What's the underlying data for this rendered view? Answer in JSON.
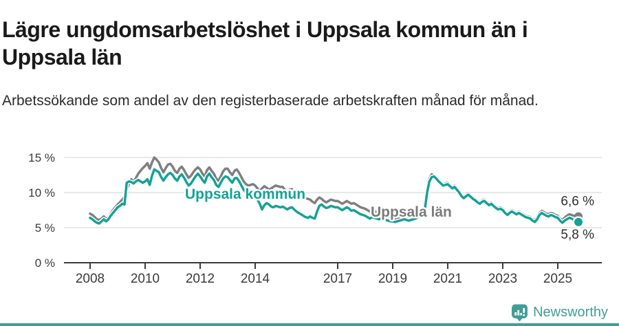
{
  "title": "Lägre ungdomsarbetslöshet i Uppsala kommun än i Uppsala län",
  "subtitle": "Arbetssökande som andel av den registerbaserade arbetskraften månad för månad.",
  "footer": {
    "brand": "Newsworthy",
    "logo_icon": "newsworthy-pin-chart-icon"
  },
  "colors": {
    "kommun": "#14a297",
    "lan": "#7f7f7f",
    "lan_label": "#7a7a7a",
    "grid": "#d9d9d9",
    "axis": "#3a3a3a",
    "title_text": "#1a1a1a",
    "value_label": "#2e2e2e",
    "brand": "#3f9e97"
  },
  "chart_data": {
    "type": "line",
    "unit": "%",
    "frequency": "monthly",
    "start": {
      "year": 2008,
      "month": 1
    },
    "end": {
      "year": 2025,
      "month": 10
    },
    "grid": "horizontal",
    "legend_position": "inline-labels",
    "y_ticks": [
      0,
      5,
      10,
      15
    ],
    "y_tick_labels": [
      "0 %",
      "5 %",
      "10 %",
      "15 %"
    ],
    "ylim": [
      0,
      15.5
    ],
    "x_tick_years": [
      2008,
      2010,
      2012,
      2014,
      2017,
      2019,
      2021,
      2023,
      2025
    ],
    "x_tick_labels": [
      "2008",
      "2010",
      "2012",
      "2014",
      "2017",
      "2019",
      "2021",
      "2023",
      "2025"
    ],
    "series": [
      {
        "name": "Uppsala län",
        "color": "#7f7f7f",
        "end_label": "6,6 %",
        "end_label_position": "above",
        "values": [
          7.0,
          6.8,
          6.5,
          6.2,
          6.1,
          6.3,
          6.6,
          6.2,
          6.5,
          7.0,
          7.5,
          7.9,
          8.3,
          8.6,
          9.0,
          9.4,
          10.4,
          11.3,
          11.9,
          11.5,
          12.1,
          12.7,
          13.1,
          13.5,
          13.8,
          14.2,
          13.4,
          14.3,
          15.0,
          14.7,
          14.3,
          13.5,
          12.9,
          13.5,
          14.0,
          14.1,
          13.7,
          13.1,
          12.8,
          13.4,
          13.7,
          13.2,
          12.6,
          12.1,
          12.4,
          12.9,
          13.3,
          13.6,
          13.3,
          12.7,
          12.3,
          13.2,
          13.6,
          13.1,
          12.7,
          12.0,
          11.7,
          12.3,
          13.0,
          13.4,
          13.4,
          12.9,
          12.5,
          13.1,
          13.3,
          12.8,
          12.2,
          11.6,
          11.2,
          11.0,
          11.1,
          11.2,
          11.0,
          10.6,
          10.2,
          10.6,
          10.9,
          10.7,
          10.4,
          10.6,
          10.8,
          11.0,
          10.9,
          10.8,
          10.8,
          10.4,
          10.1,
          10.4,
          10.5,
          10.2,
          9.9,
          9.7,
          9.5,
          9.3,
          9.2,
          9.1,
          9.0,
          8.7,
          8.5,
          9.0,
          9.3,
          9.1,
          8.8,
          8.6,
          8.8,
          9.0,
          8.9,
          8.8,
          8.8,
          8.6,
          8.4,
          8.6,
          8.8,
          8.6,
          8.4,
          8.5,
          8.3,
          8.1,
          7.9,
          7.8,
          7.7,
          7.5,
          7.3,
          7.5,
          7.4,
          7.2,
          7.0,
          6.9,
          6.8,
          6.7,
          6.6,
          6.5,
          6.4,
          6.3,
          6.2,
          6.3,
          6.4,
          6.6,
          6.5,
          6.4,
          6.5,
          6.6,
          6.7,
          6.9,
          7.0,
          7.2,
          8.0,
          10.4,
          12.0,
          12.6,
          12.4,
          12.1,
          11.8,
          11.5,
          11.2,
          11.3,
          11.4,
          11.1,
          10.8,
          11.0,
          10.6,
          10.2,
          9.7,
          9.4,
          9.7,
          9.9,
          9.6,
          9.3,
          9.1,
          8.8,
          8.6,
          8.9,
          9.0,
          8.7,
          8.4,
          8.6,
          8.3,
          8.0,
          7.8,
          7.9,
          7.7,
          7.3,
          7.0,
          7.3,
          7.5,
          7.3,
          7.1,
          7.3,
          7.1,
          6.9,
          6.7,
          6.6,
          6.5,
          6.2,
          6.1,
          6.5,
          7.1,
          7.4,
          7.2,
          7.0,
          6.9,
          7.1,
          7.0,
          6.8,
          6.7,
          6.3,
          6.1,
          6.4,
          6.7,
          6.9,
          6.8,
          6.7,
          6.6,
          6.6
        ]
      },
      {
        "name": "Uppsala kommun",
        "color": "#14a297",
        "end_label": "5,8 %",
        "end_label_position": "below",
        "values": [
          6.4,
          6.2,
          5.9,
          5.7,
          5.6,
          5.9,
          6.2,
          5.9,
          6.2,
          6.7,
          7.1,
          7.5,
          7.9,
          8.1,
          8.4,
          8.3,
          11.4,
          11.6,
          11.5,
          11.3,
          11.6,
          11.8,
          11.6,
          11.4,
          11.6,
          11.9,
          11.1,
          12.4,
          13.3,
          13.1,
          12.9,
          12.2,
          11.7,
          12.2,
          12.6,
          12.8,
          12.5,
          12.0,
          11.7,
          12.3,
          12.6,
          12.1,
          11.5,
          11.0,
          11.3,
          11.8,
          12.3,
          12.7,
          12.3,
          11.8,
          11.4,
          12.3,
          12.7,
          12.2,
          11.8,
          11.1,
          10.8,
          11.4,
          12.0,
          12.3,
          12.2,
          11.8,
          11.4,
          12.0,
          12.1,
          11.6,
          11.0,
          10.4,
          10.0,
          9.7,
          9.6,
          9.7,
          9.5,
          9.0,
          8.4,
          7.6,
          8.2,
          8.5,
          8.3,
          8.0,
          7.9,
          8.1,
          8.0,
          7.9,
          8.0,
          7.8,
          7.6,
          7.8,
          7.9,
          7.6,
          7.3,
          7.1,
          6.9,
          6.7,
          6.5,
          6.4,
          6.6,
          6.4,
          6.3,
          7.3,
          8.1,
          8.3,
          8.0,
          7.8,
          7.9,
          8.1,
          8.0,
          7.9,
          7.9,
          7.7,
          7.5,
          7.7,
          7.9,
          7.7,
          7.4,
          7.5,
          7.3,
          7.1,
          6.9,
          6.8,
          6.7,
          6.5,
          6.3,
          6.5,
          6.4,
          6.3,
          6.2,
          6.3,
          6.2,
          6.1,
          6.0,
          5.9,
          5.9,
          5.8,
          5.9,
          6.0,
          6.1,
          6.2,
          6.1,
          6.0,
          6.1,
          6.2,
          6.3,
          6.5,
          6.6,
          6.8,
          7.6,
          10.0,
          11.6,
          12.2,
          12.3,
          12.0,
          11.6,
          11.3,
          11.0,
          11.1,
          11.2,
          10.9,
          10.6,
          10.8,
          10.4,
          10.0,
          9.5,
          9.2,
          9.5,
          9.7,
          9.4,
          9.1,
          8.9,
          8.6,
          8.4,
          8.7,
          8.8,
          8.5,
          8.2,
          8.4,
          8.1,
          7.8,
          7.6,
          7.7,
          7.5,
          7.1,
          6.8,
          7.1,
          7.3,
          7.1,
          6.9,
          7.1,
          6.9,
          6.7,
          6.5,
          6.4,
          6.3,
          6.0,
          5.8,
          6.2,
          6.8,
          7.1,
          6.9,
          6.7,
          6.6,
          6.8,
          6.7,
          6.5,
          6.4,
          6.0,
          5.7,
          6.0,
          6.2,
          6.4,
          6.3,
          6.1,
          5.9,
          5.8
        ]
      }
    ],
    "series_annotations": [
      {
        "text": "Uppsala kommun",
        "x": 2011.45,
        "y": 9.8,
        "color": "#14a297"
      },
      {
        "text": "Uppsala län",
        "x": 2018.2,
        "y": 7.25,
        "color": "#7a7a7a"
      }
    ]
  }
}
